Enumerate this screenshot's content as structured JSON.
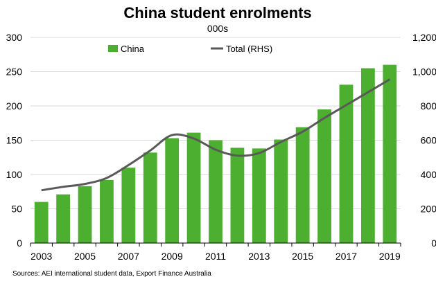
{
  "colors": {
    "bar": "#4CAF2F",
    "line": "#595959",
    "grid": "#d9d9d9",
    "text": "#000000"
  },
  "footer": {
    "source": "Sources: AEI international student data, Export Finance Australia"
  },
  "chart_data": {
    "type": "bar",
    "title": "China student enrolments",
    "subtitle": "000s",
    "categories": [
      "2003",
      "2004",
      "2005",
      "2006",
      "2007",
      "2008",
      "2009",
      "2010",
      "2011",
      "2012",
      "2013",
      "2014",
      "2015",
      "2016",
      "2017",
      "2018",
      "2019"
    ],
    "x_tick_labels": [
      "2003",
      "2005",
      "2007",
      "2009",
      "2011",
      "2013",
      "2015",
      "2017",
      "2019"
    ],
    "ylim": [
      0,
      300
    ],
    "y_ticks": [
      "0",
      "50",
      "100",
      "150",
      "200",
      "250",
      "300"
    ],
    "y2lim": [
      0,
      1200
    ],
    "y2_ticks": [
      "0",
      "200",
      "400",
      "600",
      "800",
      "1,000",
      "1,200"
    ],
    "grid": true,
    "legend_position": "top",
    "series": [
      {
        "name": "China",
        "type": "bar",
        "axis": "left",
        "values": [
          60,
          71,
          83,
          92,
          110,
          132,
          153,
          161,
          150,
          139,
          138,
          151,
          169,
          195,
          231,
          255,
          260
        ]
      },
      {
        "name": "Total (RHS)",
        "type": "line",
        "axis": "right",
        "values": [
          308,
          328,
          345,
          380,
          455,
          540,
          630,
          610,
          545,
          510,
          525,
          590,
          650,
          730,
          805,
          880,
          955
        ]
      }
    ]
  }
}
